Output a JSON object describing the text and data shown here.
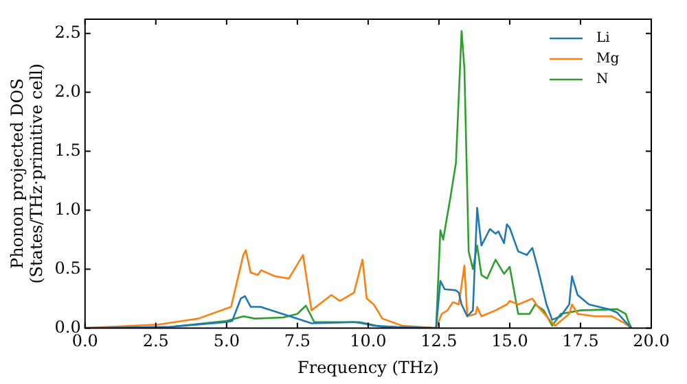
{
  "chart_data": {
    "type": "line",
    "xlabel": "Frequency (THz)",
    "ylabel": "Phonon projected DOS\n(States/THz·primitive cell)",
    "xlim": [
      0,
      20
    ],
    "ylim": [
      0,
      2.62
    ],
    "xticks": [
      {
        "value": 0,
        "label": "0.0"
      },
      {
        "value": 2.5,
        "label": "2.5"
      },
      {
        "value": 5,
        "label": "5.0"
      },
      {
        "value": 7.5,
        "label": "7.5"
      },
      {
        "value": 10,
        "label": "10.0"
      },
      {
        "value": 12.5,
        "label": "12.5"
      },
      {
        "value": 15,
        "label": "15.0"
      },
      {
        "value": 17.5,
        "label": "17.5"
      },
      {
        "value": 20,
        "label": "20.0"
      }
    ],
    "yticks": [
      {
        "value": 0,
        "label": "0.0"
      },
      {
        "value": 0.5,
        "label": "0.5"
      },
      {
        "value": 1,
        "label": "1.0"
      },
      {
        "value": 1.5,
        "label": "1.5"
      },
      {
        "value": 2,
        "label": "2.0"
      },
      {
        "value": 2.5,
        "label": "2.5"
      }
    ],
    "grid": false,
    "legend": "top right",
    "marker": "none",
    "line_style": "solid",
    "series": [
      {
        "name": "Li",
        "color": "#1f77b4",
        "x": [
          0,
          3,
          5,
          5.2,
          5.5,
          5.65,
          5.85,
          6.2,
          7.5,
          8,
          9.5,
          9.8,
          10.2,
          11,
          12.4,
          12.55,
          12.7,
          13.1,
          13.2,
          13.3,
          13.5,
          13.7,
          13.85,
          14,
          14.3,
          14.5,
          14.6,
          14.8,
          14.9,
          15,
          15.3,
          15.6,
          15.8,
          16,
          16.3,
          16.5,
          16.8,
          17.1,
          17.2,
          17.4,
          17.8,
          18.5,
          18.8,
          19.1,
          19.3
        ],
        "values": [
          0,
          0.01,
          0.05,
          0.06,
          0.25,
          0.27,
          0.18,
          0.18,
          0.08,
          0.04,
          0.05,
          0.04,
          0.02,
          0.01,
          0,
          0.4,
          0.33,
          0.32,
          0.3,
          0.2,
          0.1,
          0.15,
          1.02,
          0.7,
          0.84,
          0.8,
          0.82,
          0.72,
          0.88,
          0.85,
          0.65,
          0.62,
          0.68,
          0.5,
          0.2,
          0.07,
          0.1,
          0.2,
          0.44,
          0.28,
          0.2,
          0.16,
          0.13,
          0.05,
          0
        ]
      },
      {
        "name": "Mg",
        "color": "#ff7f0e",
        "x": [
          0,
          2.6,
          4,
          5.16,
          5.59,
          5.68,
          5.85,
          6.1,
          6.22,
          6.7,
          7.2,
          7.7,
          8,
          8.7,
          9,
          9.5,
          9.8,
          9.95,
          10.2,
          10.5,
          11.2,
          12.4,
          12.6,
          12.8,
          13,
          13.2,
          13.4,
          13.5,
          13.8,
          13.85,
          14,
          14.5,
          14.9,
          15,
          15.3,
          15.8,
          16,
          16.3,
          16.6,
          16.9,
          17.1,
          17.2,
          17.4,
          18,
          18.6,
          19,
          19.3
        ],
        "values": [
          0,
          0.03,
          0.08,
          0.18,
          0.62,
          0.66,
          0.47,
          0.45,
          0.49,
          0.44,
          0.42,
          0.62,
          0.15,
          0.28,
          0.23,
          0.3,
          0.58,
          0.25,
          0.2,
          0.08,
          0.02,
          0,
          0.12,
          0.15,
          0.22,
          0.2,
          0.53,
          0.1,
          0.12,
          0.18,
          0.1,
          0.15,
          0.2,
          0.23,
          0.2,
          0.25,
          0.18,
          0.1,
          0.02,
          0.08,
          0.12,
          0.2,
          0.12,
          0.1,
          0.1,
          0.05,
          0
        ]
      },
      {
        "name": "N",
        "color": "#2ca02c",
        "x": [
          0,
          3,
          5,
          5.6,
          6,
          7,
          7.5,
          7.8,
          8.1,
          8.7,
          9.7,
          10.5,
          12.4,
          12.55,
          12.65,
          12.9,
          13.1,
          13.3,
          13.4,
          13.55,
          13.7,
          13.85,
          14,
          14.2,
          14.5,
          14.8,
          15,
          15.3,
          15.7,
          15.9,
          16.2,
          16.5,
          16.8,
          17.5,
          18.8,
          19.1,
          19.2,
          19.3
        ],
        "values": [
          0,
          0.01,
          0.06,
          0.1,
          0.08,
          0.09,
          0.12,
          0.19,
          0.05,
          0.05,
          0.05,
          0.01,
          0,
          0.83,
          0.75,
          1.1,
          1.4,
          2.52,
          2.2,
          0.65,
          0.5,
          0.7,
          0.45,
          0.42,
          0.58,
          0.46,
          0.52,
          0.12,
          0.12,
          0.2,
          0.15,
          0.02,
          0.12,
          0.15,
          0.16,
          0.12,
          0.05,
          0
        ]
      }
    ]
  }
}
